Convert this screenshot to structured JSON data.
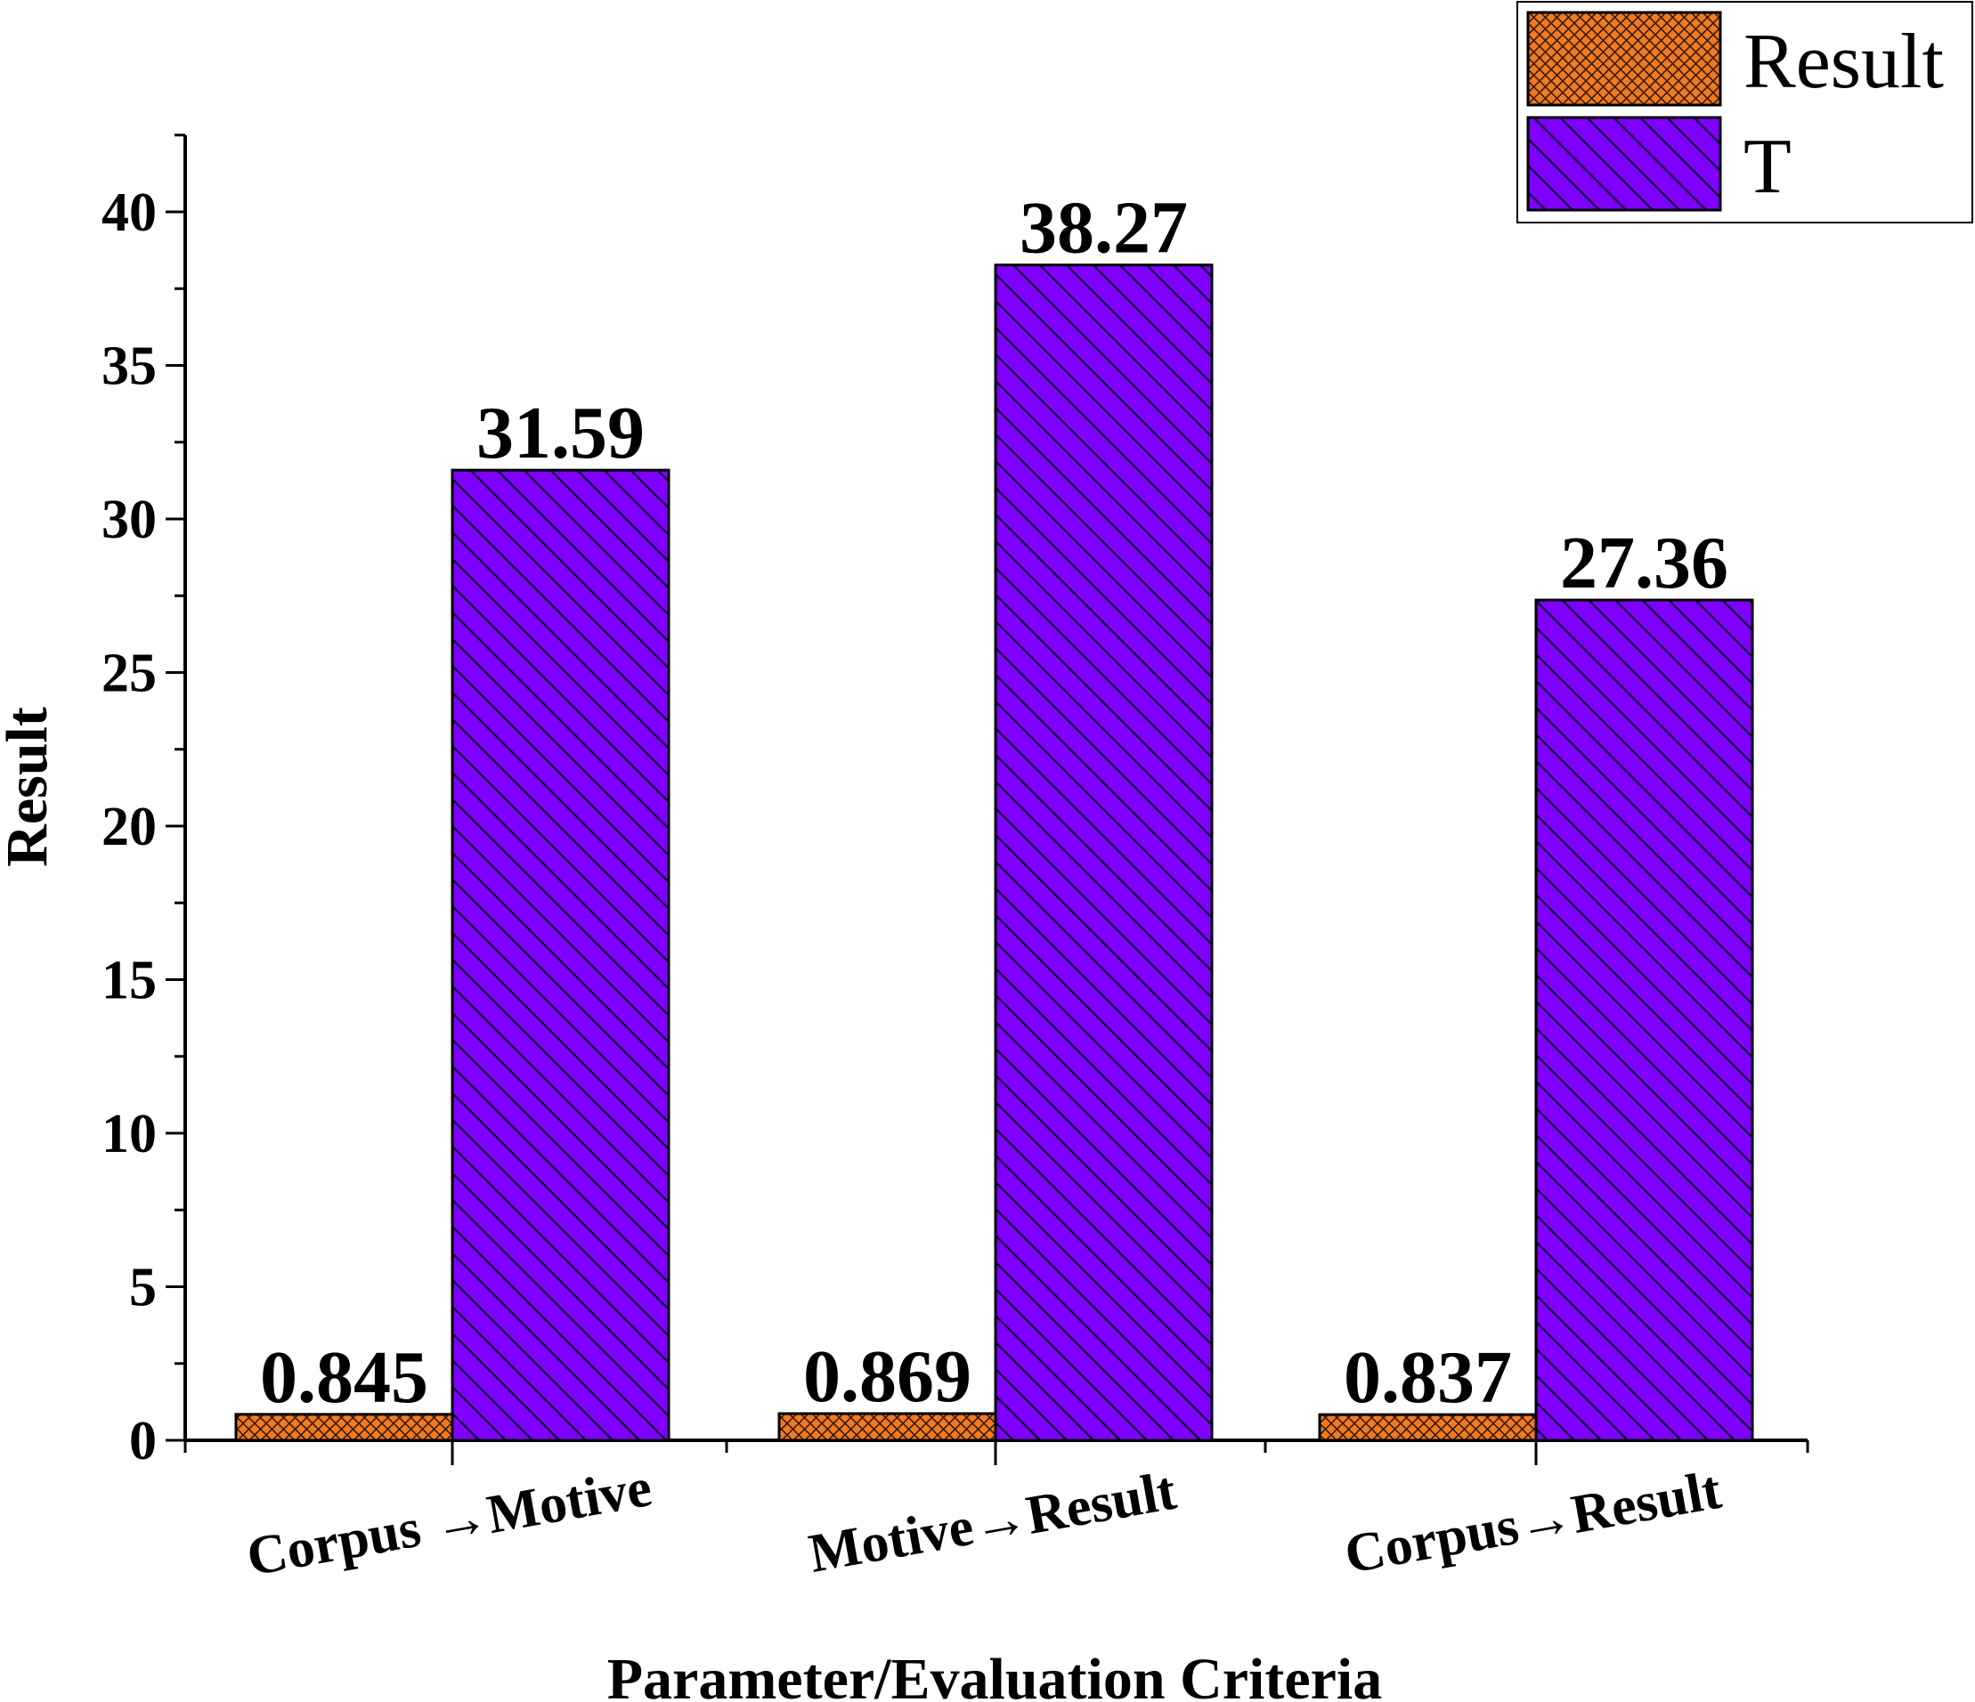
{
  "chart_data": {
    "type": "bar",
    "categories": [
      "Corpus →Motive",
      "Motive→Result",
      "Corpus→Result"
    ],
    "series": [
      {
        "name": "Result",
        "values": [
          0.845,
          0.869,
          0.837
        ],
        "labels": [
          "0.845",
          "0.869",
          "0.837"
        ],
        "color": "#f07a22",
        "pattern": "crosshatch"
      },
      {
        "name": "T",
        "values": [
          31.59,
          38.27,
          27.36
        ],
        "labels": [
          "31.59",
          "38.27",
          "27.36"
        ],
        "color": "#8000ff",
        "pattern": "diagonal"
      }
    ],
    "xlabel": "Parameter/Evaluation Criteria",
    "ylabel": "Result",
    "ylim": [
      0,
      42.5
    ],
    "yticks": [
      "0",
      "5",
      "10",
      "15",
      "20",
      "25",
      "30",
      "35",
      "40"
    ],
    "grid": false,
    "legend": "top-right"
  }
}
